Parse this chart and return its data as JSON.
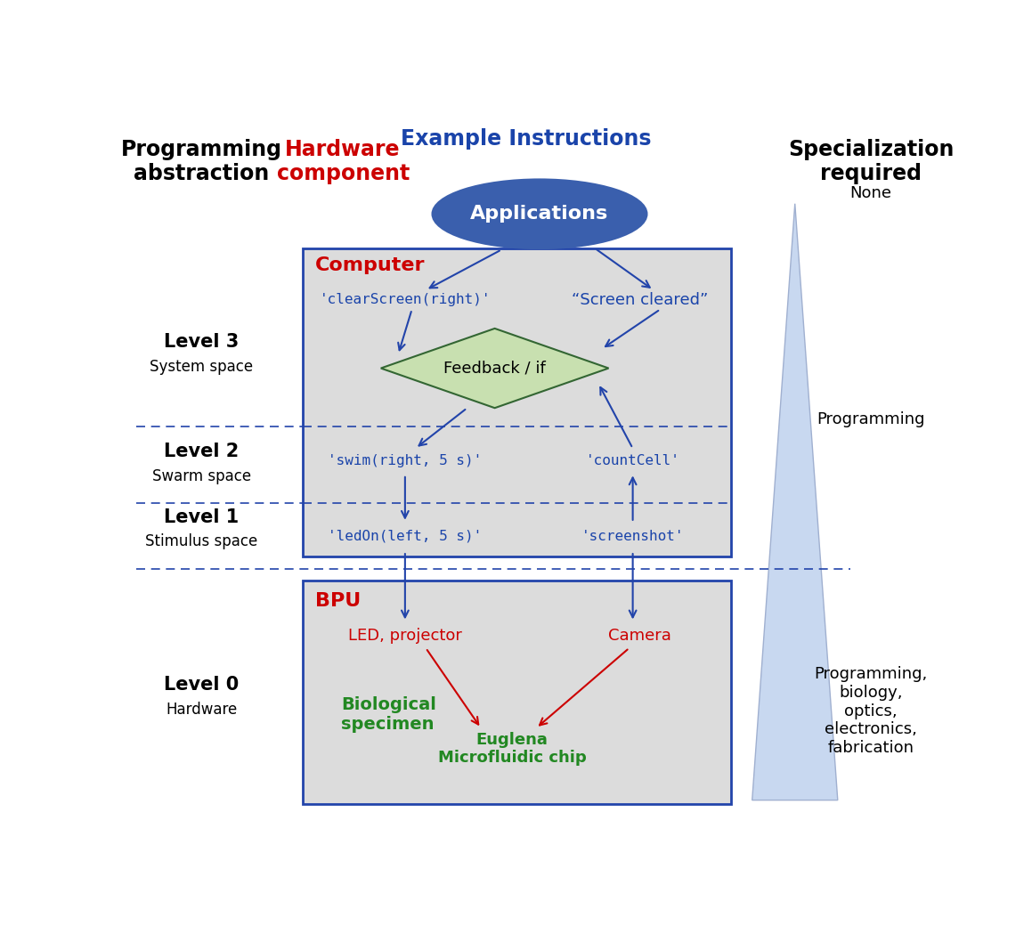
{
  "fig_width": 11.59,
  "fig_height": 10.4,
  "bg_color": "#ffffff",
  "col1_header": "Programming\nabstraction",
  "col2_header": "Hardware\ncomponent",
  "col3_header": "Example Instructions",
  "col4_header": "Specialization\nrequired",
  "col2_color": "#cc0000",
  "col3_color": "#1a44aa",
  "ellipse_text": "Applications",
  "ellipse_color": "#3a5fad",
  "ellipse_text_color": "#ffffff",
  "box_upper_bg": "#dcdcdc",
  "box_upper_border": "#2244aa",
  "box_lower_bg": "#dcdcdc",
  "box_lower_border": "#2244aa",
  "diamond_text": "Feedback / if",
  "diamond_fill": "#c8e0b0",
  "diamond_border": "#336633",
  "computer_label": "Computer",
  "bpu_label": "BPU",
  "clearscreen_text": "'clearScreen(right)'",
  "screen_cleared_text": "“Screen cleared”",
  "swim_text": "'swim(right, 5 s)'",
  "countcell_text": "'countCell'",
  "ledon_text": "'ledOn(left, 5 s)'",
  "screenshot_text": "'screenshot'",
  "led_text": "LED, projector",
  "camera_text": "Camera",
  "bio_specimen_text": "Biological\nspecimen",
  "euglena_text": "Euglena\nMicrofluidic chip",
  "none_text": "None",
  "programming_text": "Programming",
  "prog_bio_text": "Programming,\nbiology,\noptics,\nelectronics,\nfabrication",
  "arrow_color": "#2244aa",
  "red_color": "#cc0000",
  "green_color": "#228822",
  "red_arrow_color": "#cc0000",
  "tri_fill": "#c8d8f0",
  "tri_edge": "#a0b0d0"
}
